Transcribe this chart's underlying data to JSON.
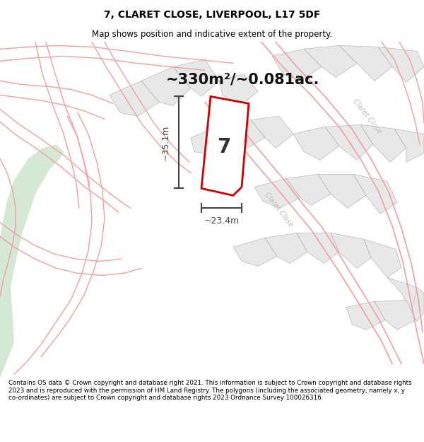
{
  "title": "7, CLARET CLOSE, LIVERPOOL, L17 5DF",
  "subtitle": "Map shows position and indicative extent of the property.",
  "size_text": "~330m²/~0.081ac.",
  "property_number": "7",
  "dim_width": "~23.4m",
  "dim_height": "~35.1m",
  "footer": "Contains OS data © Crown copyright and database right 2021. This information is subject to Crown copyright and database rights 2023 and is reproduced with the permission of HM Land Registry. The polygons (including the associated geometry, namely x, y co-ordinates) are subject to Crown copyright and database rights 2023 Ordnance Survey 100026316.",
  "bg_color": "#ffffff",
  "map_bg": "#ffffff",
  "parcel_fill": "#e8e8e8",
  "parcel_stroke": "#aaaaaa",
  "road_stroke": "#f0a0a0",
  "road_stroke2": "#e88888",
  "property_fill": "#ffffff",
  "property_stroke": "#cc0000",
  "green_fill": "#d4e8d4",
  "green_stroke": "none",
  "title_color": "#000000",
  "footer_color": "#000000",
  "dim_color": "#444444",
  "label_color": "#aaaaaa"
}
